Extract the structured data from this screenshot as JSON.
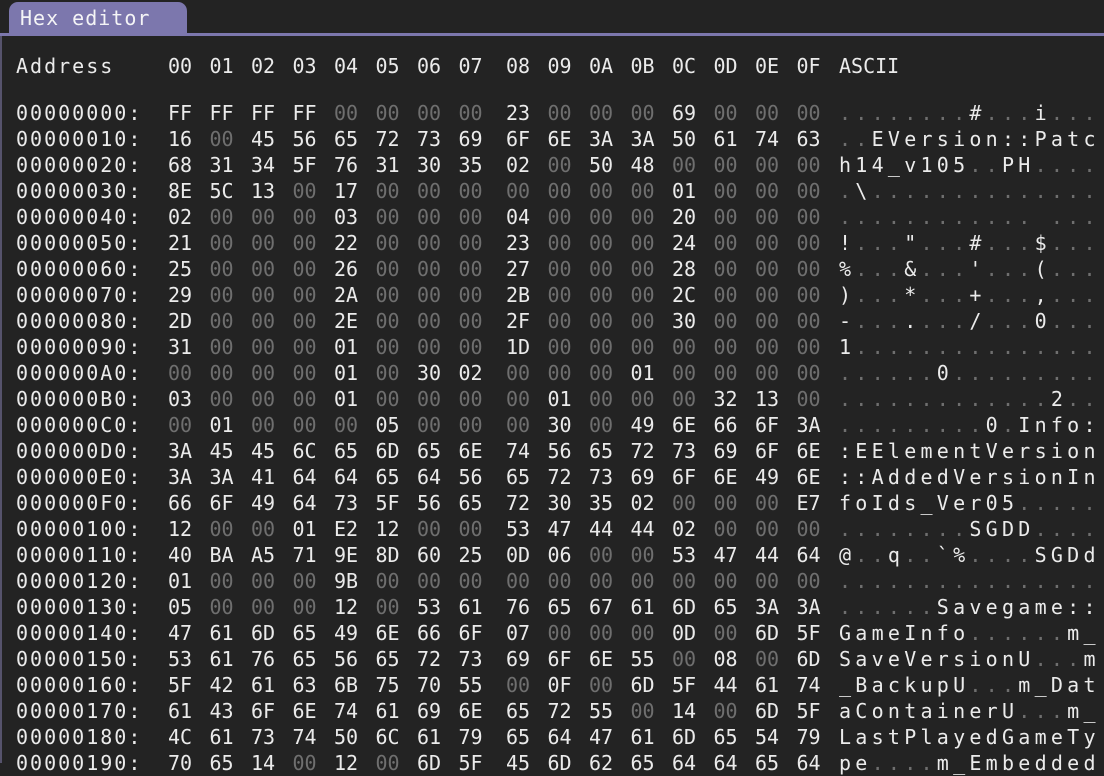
{
  "tab": {
    "title": "Hex editor"
  },
  "header": {
    "address": "Address",
    "group1": [
      "00",
      "01",
      "02",
      "03",
      "04",
      "05",
      "06",
      "07"
    ],
    "group2": [
      "08",
      "09",
      "0A",
      "0B",
      "0C",
      "0D",
      "0E",
      "0F"
    ],
    "ascii": "ASCII"
  },
  "colors": {
    "background": "#232323",
    "tab_accent": "#7c77ad",
    "text_bright": "#ebebeb",
    "text_dim": "#6f6f6f"
  },
  "rows": [
    {
      "addr": "00000000:",
      "bytes": [
        "FF",
        "FF",
        "FF",
        "FF",
        "00",
        "00",
        "00",
        "00",
        "23",
        "00",
        "00",
        "00",
        "69",
        "00",
        "00",
        "00"
      ],
      "ascii": "........#...i..."
    },
    {
      "addr": "00000010:",
      "bytes": [
        "16",
        "00",
        "45",
        "56",
        "65",
        "72",
        "73",
        "69",
        "6F",
        "6E",
        "3A",
        "3A",
        "50",
        "61",
        "74",
        "63"
      ],
      "ascii": "..EVersion::Patc"
    },
    {
      "addr": "00000020:",
      "bytes": [
        "68",
        "31",
        "34",
        "5F",
        "76",
        "31",
        "30",
        "35",
        "02",
        "00",
        "50",
        "48",
        "00",
        "00",
        "00",
        "00"
      ],
      "ascii": "h14_v105..PH...."
    },
    {
      "addr": "00000030:",
      "bytes": [
        "8E",
        "5C",
        "13",
        "00",
        "17",
        "00",
        "00",
        "00",
        "00",
        "00",
        "00",
        "00",
        "01",
        "00",
        "00",
        "00"
      ],
      "ascii": ".\\.............."
    },
    {
      "addr": "00000040:",
      "bytes": [
        "02",
        "00",
        "00",
        "00",
        "03",
        "00",
        "00",
        "00",
        "04",
        "00",
        "00",
        "00",
        "20",
        "00",
        "00",
        "00"
      ],
      "ascii": "............ ..."
    },
    {
      "addr": "00000050:",
      "bytes": [
        "21",
        "00",
        "00",
        "00",
        "22",
        "00",
        "00",
        "00",
        "23",
        "00",
        "00",
        "00",
        "24",
        "00",
        "00",
        "00"
      ],
      "ascii": "!...\"...#...$..."
    },
    {
      "addr": "00000060:",
      "bytes": [
        "25",
        "00",
        "00",
        "00",
        "26",
        "00",
        "00",
        "00",
        "27",
        "00",
        "00",
        "00",
        "28",
        "00",
        "00",
        "00"
      ],
      "ascii": "%...&...'...(..."
    },
    {
      "addr": "00000070:",
      "bytes": [
        "29",
        "00",
        "00",
        "00",
        "2A",
        "00",
        "00",
        "00",
        "2B",
        "00",
        "00",
        "00",
        "2C",
        "00",
        "00",
        "00"
      ],
      "ascii": ")...*...+...,..."
    },
    {
      "addr": "00000080:",
      "bytes": [
        "2D",
        "00",
        "00",
        "00",
        "2E",
        "00",
        "00",
        "00",
        "2F",
        "00",
        "00",
        "00",
        "30",
        "00",
        "00",
        "00"
      ],
      "ascii": "-......./...0..."
    },
    {
      "addr": "00000090:",
      "bytes": [
        "31",
        "00",
        "00",
        "00",
        "01",
        "00",
        "00",
        "00",
        "1D",
        "00",
        "00",
        "00",
        "00",
        "00",
        "00",
        "00"
      ],
      "ascii": "1..............."
    },
    {
      "addr": "000000A0:",
      "bytes": [
        "00",
        "00",
        "00",
        "00",
        "01",
        "00",
        "30",
        "02",
        "00",
        "00",
        "00",
        "01",
        "00",
        "00",
        "00",
        "00"
      ],
      "ascii": "......0........."
    },
    {
      "addr": "000000B0:",
      "bytes": [
        "03",
        "00",
        "00",
        "00",
        "01",
        "00",
        "00",
        "00",
        "00",
        "01",
        "00",
        "00",
        "00",
        "32",
        "13",
        "00"
      ],
      "ascii": ".............2.."
    },
    {
      "addr": "000000C0:",
      "bytes": [
        "00",
        "01",
        "00",
        "00",
        "00",
        "05",
        "00",
        "00",
        "00",
        "30",
        "00",
        "49",
        "6E",
        "66",
        "6F",
        "3A"
      ],
      "ascii": ".........0.Info:"
    },
    {
      "addr": "000000D0:",
      "bytes": [
        "3A",
        "45",
        "45",
        "6C",
        "65",
        "6D",
        "65",
        "6E",
        "74",
        "56",
        "65",
        "72",
        "73",
        "69",
        "6F",
        "6E"
      ],
      "ascii": ":EElementVersion"
    },
    {
      "addr": "000000E0:",
      "bytes": [
        "3A",
        "3A",
        "41",
        "64",
        "64",
        "65",
        "64",
        "56",
        "65",
        "72",
        "73",
        "69",
        "6F",
        "6E",
        "49",
        "6E"
      ],
      "ascii": "::AddedVersionIn"
    },
    {
      "addr": "000000F0:",
      "bytes": [
        "66",
        "6F",
        "49",
        "64",
        "73",
        "5F",
        "56",
        "65",
        "72",
        "30",
        "35",
        "02",
        "00",
        "00",
        "00",
        "E7"
      ],
      "ascii": "foIds_Ver05....."
    },
    {
      "addr": "00000100:",
      "bytes": [
        "12",
        "00",
        "00",
        "01",
        "E2",
        "12",
        "00",
        "00",
        "53",
        "47",
        "44",
        "44",
        "02",
        "00",
        "00",
        "00"
      ],
      "ascii": "........SGDD...."
    },
    {
      "addr": "00000110:",
      "bytes": [
        "40",
        "BA",
        "A5",
        "71",
        "9E",
        "8D",
        "60",
        "25",
        "0D",
        "06",
        "00",
        "00",
        "53",
        "47",
        "44",
        "64"
      ],
      "ascii": "@..q..`%....SGDd"
    },
    {
      "addr": "00000120:",
      "bytes": [
        "01",
        "00",
        "00",
        "00",
        "9B",
        "00",
        "00",
        "00",
        "00",
        "00",
        "00",
        "00",
        "00",
        "00",
        "00",
        "00"
      ],
      "ascii": "................"
    },
    {
      "addr": "00000130:",
      "bytes": [
        "05",
        "00",
        "00",
        "00",
        "12",
        "00",
        "53",
        "61",
        "76",
        "65",
        "67",
        "61",
        "6D",
        "65",
        "3A",
        "3A"
      ],
      "ascii": "......Savegame::"
    },
    {
      "addr": "00000140:",
      "bytes": [
        "47",
        "61",
        "6D",
        "65",
        "49",
        "6E",
        "66",
        "6F",
        "07",
        "00",
        "00",
        "00",
        "0D",
        "00",
        "6D",
        "5F"
      ],
      "ascii": "GameInfo......m_"
    },
    {
      "addr": "00000150:",
      "bytes": [
        "53",
        "61",
        "76",
        "65",
        "56",
        "65",
        "72",
        "73",
        "69",
        "6F",
        "6E",
        "55",
        "00",
        "08",
        "00",
        "6D"
      ],
      "ascii": "SaveVersionU...m"
    },
    {
      "addr": "00000160:",
      "bytes": [
        "5F",
        "42",
        "61",
        "63",
        "6B",
        "75",
        "70",
        "55",
        "00",
        "0F",
        "00",
        "6D",
        "5F",
        "44",
        "61",
        "74"
      ],
      "ascii": "_BackupU...m_Dat"
    },
    {
      "addr": "00000170:",
      "bytes": [
        "61",
        "43",
        "6F",
        "6E",
        "74",
        "61",
        "69",
        "6E",
        "65",
        "72",
        "55",
        "00",
        "14",
        "00",
        "6D",
        "5F"
      ],
      "ascii": "aContainerU...m_"
    },
    {
      "addr": "00000180:",
      "bytes": [
        "4C",
        "61",
        "73",
        "74",
        "50",
        "6C",
        "61",
        "79",
        "65",
        "64",
        "47",
        "61",
        "6D",
        "65",
        "54",
        "79"
      ],
      "ascii": "LastPlayedGameTy"
    },
    {
      "addr": "00000190:",
      "bytes": [
        "70",
        "65",
        "14",
        "00",
        "12",
        "00",
        "6D",
        "5F",
        "45",
        "6D",
        "62",
        "65",
        "64",
        "64",
        "65",
        "64"
      ],
      "ascii": "pe....m_Embedded"
    }
  ]
}
